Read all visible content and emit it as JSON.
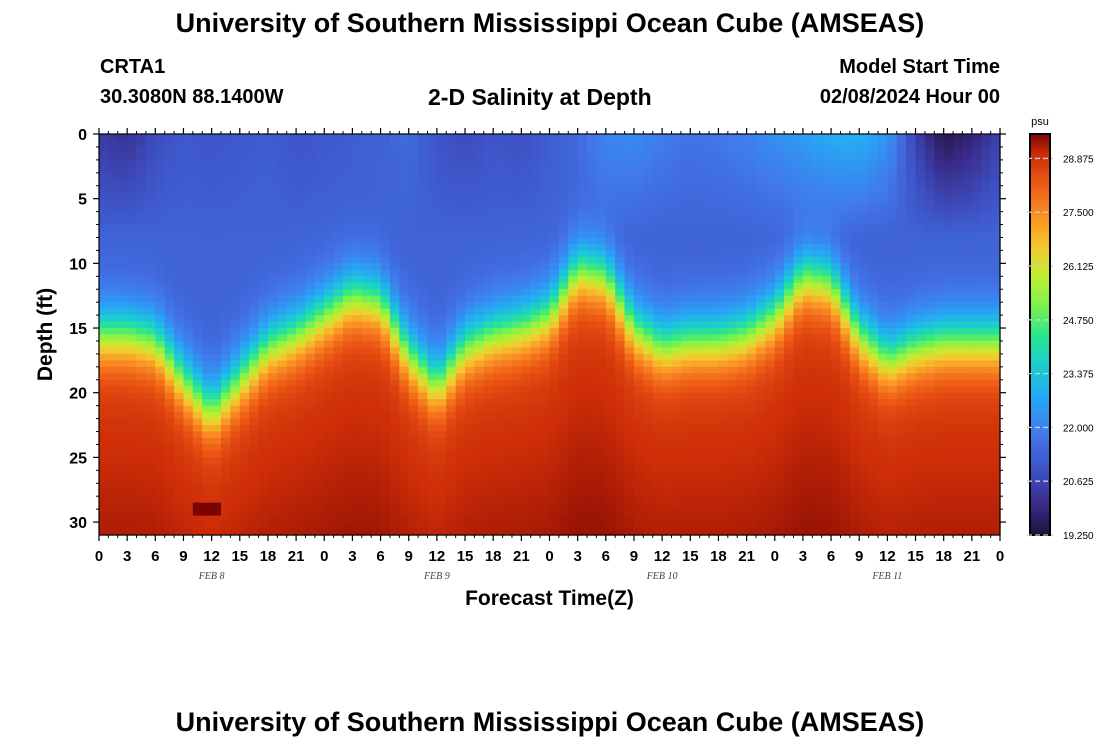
{
  "header": {
    "title": "University of Southern Mississippi Ocean Cube (AMSEAS)",
    "station": "CRTA1",
    "coords": "30.3080N  88.1400W",
    "plot_title": "2-D Salinity at Depth",
    "model_start_label": "Model Start Time",
    "model_start_value": "02/08/2024 Hour 00"
  },
  "footer": {
    "title": "University of Southern Mississippi Ocean Cube (AMSEAS)"
  },
  "chart_data": {
    "type": "heatmap",
    "title": "2-D Salinity at Depth",
    "xlabel": "Forecast Time(Z)",
    "ylabel": "Depth (ft)",
    "x_ticks": [
      "0",
      "3",
      "6",
      "9",
      "12",
      "15",
      "18",
      "21",
      "0",
      "3",
      "6",
      "9",
      "12",
      "15",
      "18",
      "21",
      "0",
      "3",
      "6",
      "9",
      "12",
      "15",
      "18",
      "21",
      "0",
      "3",
      "6",
      "9",
      "12",
      "15",
      "18",
      "21",
      "0"
    ],
    "day_labels": [
      "FEB 8",
      "FEB 9",
      "FEB 10",
      "FEB 11"
    ],
    "xlim_hours": [
      0,
      96
    ],
    "ylim": [
      31,
      0
    ],
    "y_ticks": [
      0,
      5,
      10,
      15,
      20,
      25,
      30
    ],
    "halocline_depth_ft": {
      "hours": [
        0,
        3,
        6,
        9,
        12,
        15,
        18,
        21,
        24,
        27,
        30,
        33,
        36,
        39,
        42,
        45,
        48,
        51,
        54,
        57,
        60,
        63,
        66,
        69,
        72,
        75,
        78,
        81,
        84,
        87,
        90,
        93,
        96
      ],
      "values": [
        15.5,
        15.5,
        16.0,
        19.0,
        21.5,
        19.0,
        16.5,
        15.5,
        14.0,
        12.5,
        13.0,
        17.0,
        19.5,
        16.5,
        15.5,
        15.0,
        14.0,
        10.5,
        11.0,
        15.0,
        16.5,
        16.0,
        16.0,
        15.5,
        14.0,
        11.0,
        11.5,
        15.5,
        17.5,
        16.5,
        16.0,
        16.0,
        16.0
      ]
    },
    "surface_salinity_psu": {
      "hours": [
        0,
        3,
        6,
        9,
        12,
        15,
        18,
        21,
        24,
        27,
        30,
        33,
        36,
        39,
        42,
        45,
        48,
        51,
        54,
        57,
        60,
        63,
        66,
        69,
        72,
        75,
        78,
        81,
        84,
        87,
        90,
        93,
        96
      ],
      "values": [
        20.4,
        20.2,
        20.8,
        21.1,
        21.0,
        21.1,
        21.2,
        21.0,
        21.1,
        21.2,
        21.3,
        21.5,
        21.0,
        20.8,
        21.0,
        20.9,
        21.2,
        21.5,
        22.1,
        22.2,
        21.9,
        21.7,
        21.8,
        22.0,
        22.3,
        22.6,
        22.9,
        23.0,
        22.4,
        20.6,
        19.4,
        19.8,
        20.6
      ]
    },
    "upper_layer_salinity_psu": 21.3,
    "bottom_salinity_psu": 28.9,
    "max_patch": {
      "hour": 11.5,
      "depth_ft": 29,
      "value_psu": 30.0
    },
    "colorbar": {
      "unit": "psu",
      "range": [
        19.25,
        29.5
      ],
      "ticks": [
        "28.875",
        "27.500",
        "26.125",
        "24.750",
        "23.375",
        "22.000",
        "20.625",
        "19.250"
      ],
      "tick_values": [
        28.875,
        27.5,
        26.125,
        24.75,
        23.375,
        22.0,
        20.625,
        19.25
      ]
    }
  }
}
